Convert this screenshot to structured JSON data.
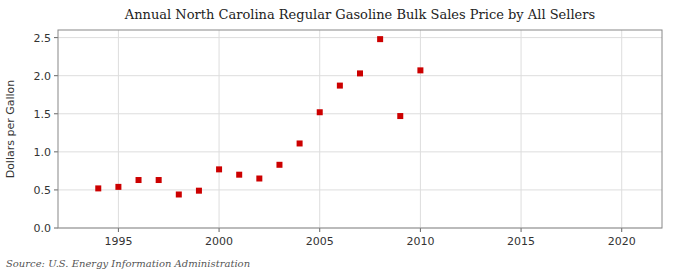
{
  "chart_data": {
    "type": "scatter",
    "title": "Annual North Carolina Regular Gasoline Bulk Sales Price by All Sellers",
    "y_label": "Dollars per Gallon",
    "annotations": [
      "Source: U.S. Energy Information Administration"
    ],
    "x": [
      1994,
      1995,
      1996,
      1997,
      1998,
      1999,
      2000,
      2001,
      2002,
      2003,
      2004,
      2005,
      2006,
      2007,
      2008,
      2009,
      2010
    ],
    "values": [
      0.52,
      0.54,
      0.63,
      0.63,
      0.44,
      0.49,
      0.77,
      0.7,
      0.65,
      0.83,
      1.11,
      1.52,
      1.87,
      2.03,
      2.48,
      1.47,
      2.07
    ],
    "color": "#cc0000",
    "marker": "square",
    "xlim": [
      1992,
      2022
    ],
    "ylim": [
      0.0,
      2.6
    ],
    "xticks": [
      1995,
      2000,
      2005,
      2010,
      2015,
      2020
    ],
    "yticks": [
      {
        "value": 0.0,
        "label": "0.0"
      },
      0.5,
      {
        "value": 1.0,
        "label": "1.0"
      },
      1.5,
      {
        "value": 2.0,
        "label": "2.0"
      },
      2.5
    ],
    "grid": true
  }
}
